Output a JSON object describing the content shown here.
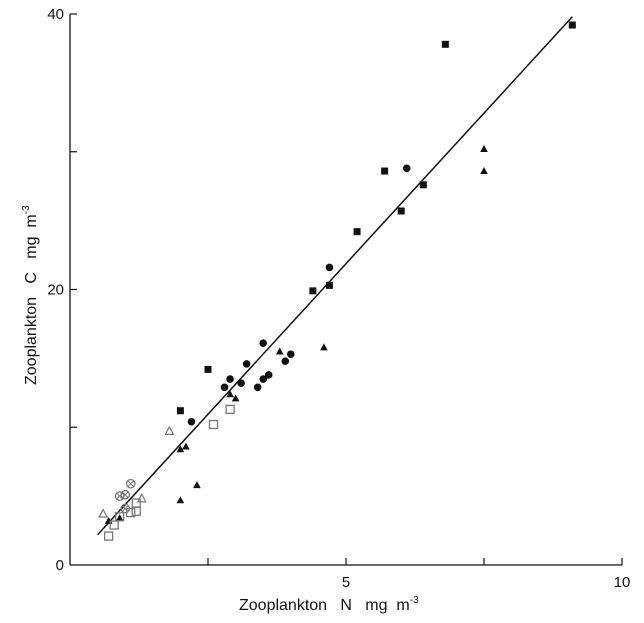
{
  "chart_data": {
    "type": "scatter",
    "title": "",
    "xlabel": "Zooplankton   N   mg  m",
    "xlabel_exponent": "-3",
    "ylabel": "Zooplankton   C   mg  m",
    "ylabel_exponent": "-3",
    "xlim": [
      0,
      10
    ],
    "ylim": [
      0,
      40
    ],
    "x_ticks": [
      0,
      5,
      10
    ],
    "y_ticks": [
      0,
      20,
      40
    ],
    "x_tick_labels": [
      "",
      "5",
      "10"
    ],
    "y_tick_labels": [
      "0",
      "20",
      "40"
    ],
    "grid": false,
    "legend": "none",
    "regression_line": {
      "x": [
        0.5,
        9.1
      ],
      "y": [
        2.2,
        39.8
      ]
    },
    "series": [
      {
        "marker": "filled-square",
        "color": "#111111",
        "points": [
          [
            9.1,
            39.2
          ],
          [
            6.8,
            37.8
          ],
          [
            6.4,
            27.6
          ],
          [
            6.0,
            25.7
          ],
          [
            5.7,
            28.6
          ],
          [
            5.2,
            24.2
          ],
          [
            4.7,
            20.3
          ],
          [
            4.4,
            19.9
          ],
          [
            2.5,
            14.2
          ],
          [
            2.0,
            11.2
          ]
        ]
      },
      {
        "marker": "filled-circle",
        "color": "#111111",
        "points": [
          [
            6.1,
            28.8
          ],
          [
            4.7,
            21.6
          ],
          [
            4.0,
            15.3
          ],
          [
            3.9,
            14.8
          ],
          [
            3.5,
            16.1
          ],
          [
            3.6,
            13.8
          ],
          [
            3.5,
            13.5
          ],
          [
            3.4,
            12.9
          ],
          [
            3.2,
            14.6
          ],
          [
            3.1,
            13.2
          ],
          [
            2.9,
            13.5
          ],
          [
            2.8,
            12.9
          ],
          [
            2.2,
            10.4
          ]
        ]
      },
      {
        "marker": "filled-triangle",
        "color": "#111111",
        "points": [
          [
            7.5,
            30.2
          ],
          [
            7.5,
            28.6
          ],
          [
            4.6,
            15.8
          ],
          [
            3.8,
            15.5
          ],
          [
            3.0,
            12.1
          ],
          [
            2.9,
            12.4
          ],
          [
            2.1,
            8.6
          ],
          [
            2.0,
            8.4
          ],
          [
            2.0,
            4.7
          ],
          [
            2.3,
            5.8
          ],
          [
            0.7,
            3.2
          ],
          [
            0.9,
            3.4
          ]
        ]
      },
      {
        "marker": "open-square",
        "color": "#777777",
        "points": [
          [
            2.9,
            11.3
          ],
          [
            2.6,
            10.2
          ],
          [
            1.2,
            4.5
          ],
          [
            1.2,
            3.9
          ],
          [
            1.1,
            3.8
          ],
          [
            0.9,
            3.5
          ],
          [
            0.8,
            2.9
          ],
          [
            0.7,
            2.1
          ]
        ]
      },
      {
        "marker": "open-triangle",
        "color": "#777777",
        "points": [
          [
            1.8,
            9.7
          ],
          [
            1.3,
            4.8
          ],
          [
            0.6,
            3.7
          ]
        ]
      },
      {
        "marker": "circle-cross",
        "color": "#777777",
        "points": [
          [
            1.1,
            5.9
          ],
          [
            1.0,
            5.1
          ],
          [
            0.9,
            5.0
          ],
          [
            1.0,
            4.1
          ]
        ]
      }
    ]
  }
}
